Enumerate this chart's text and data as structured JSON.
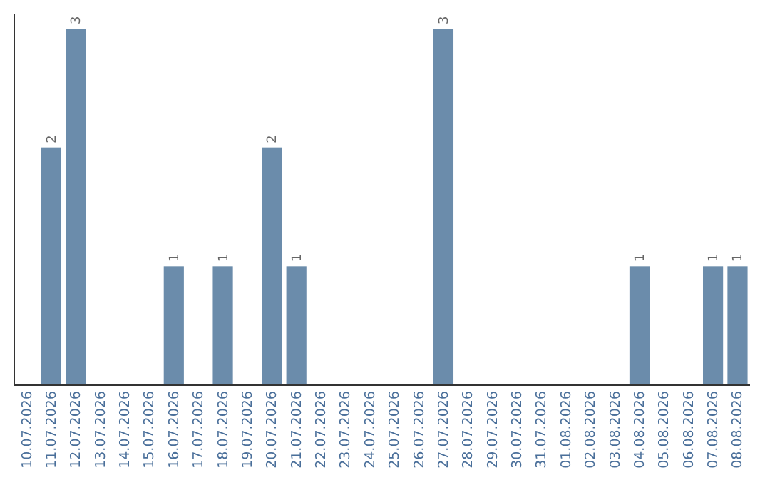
{
  "chart_data": {
    "type": "bar",
    "categories": [
      "10.07.2026",
      "11.07.2026",
      "12.07.2026",
      "13.07.2026",
      "14.07.2026",
      "15.07.2026",
      "16.07.2026",
      "17.07.2026",
      "18.07.2026",
      "19.07.2026",
      "20.07.2026",
      "21.07.2026",
      "22.07.2026",
      "23.07.2026",
      "24.07.2026",
      "25.07.2026",
      "26.07.2026",
      "27.07.2026",
      "28.07.2026",
      "29.07.2026",
      "30.07.2026",
      "31.07.2026",
      "01.08.2026",
      "02.08.2026",
      "03.08.2026",
      "04.08.2026",
      "05.08.2026",
      "06.08.2026",
      "07.08.2026",
      "08.08.2026"
    ],
    "values": [
      0,
      2,
      3,
      0,
      0,
      0,
      1,
      0,
      1,
      0,
      2,
      1,
      0,
      0,
      0,
      0,
      0,
      3,
      0,
      0,
      0,
      0,
      0,
      0,
      0,
      1,
      0,
      0,
      1,
      1
    ],
    "value_labels": [
      null,
      "2",
      "3",
      null,
      null,
      null,
      "1",
      null,
      "1",
      null,
      "2",
      "1",
      null,
      null,
      null,
      null,
      null,
      "3",
      null,
      null,
      null,
      null,
      null,
      null,
      null,
      "1",
      null,
      null,
      "1",
      "1"
    ],
    "color": "#6b8cab",
    "ylim": [
      0,
      3
    ],
    "tick_labels": "x"
  }
}
